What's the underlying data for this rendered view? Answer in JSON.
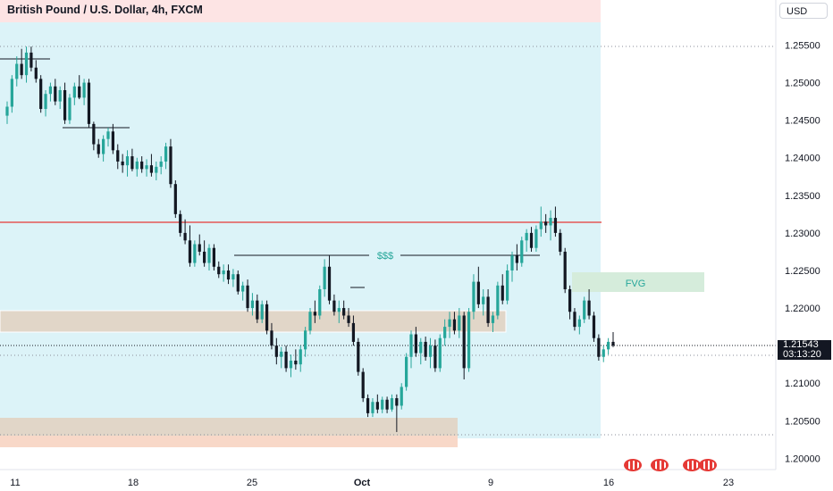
{
  "header": {
    "title": "British Pound / U.S. Dollar, 4h, FXCM",
    "currency": "USD"
  },
  "price_scale": {
    "ticks": [
      "1.25500",
      "1.25000",
      "1.24500",
      "1.24000",
      "1.23500",
      "1.23000",
      "1.22500",
      "1.22000",
      "1.21500",
      "1.21000",
      "1.20500",
      "1.20000"
    ],
    "current_price": "1.21543",
    "countdown": "03:13:20"
  },
  "time_axis": {
    "ticks": [
      "11",
      "18",
      "25",
      "Oct",
      "9",
      "16",
      "23"
    ]
  },
  "annotations": {
    "liquidity_label": "$$$",
    "fvg_label": "FVG"
  },
  "colors": {
    "up": "#26a69a",
    "down": "#131722",
    "zone_bg": "#dcf3f8",
    "top_zone": "#fde4e4",
    "supply_zone": "#e1d6c8",
    "demand_zone": "#f8d8c8",
    "resistance": "#e53935",
    "fvg": "#d5ecdb"
  },
  "chart_data": {
    "type": "candlestick",
    "title": "British Pound / U.S. Dollar, 4h, FXCM",
    "x_ticks": [
      "11",
      "18",
      "25",
      "Oct",
      "9",
      "16",
      "23"
    ],
    "y_range": [
      1.1985,
      1.261
    ],
    "y_ticks": [
      1.255,
      1.25,
      1.245,
      1.24,
      1.235,
      1.23,
      1.225,
      1.22,
      1.215,
      1.21,
      1.205,
      1.2
    ],
    "candles": [
      [
        1.2456,
        1.2475,
        1.2445,
        1.2468
      ],
      [
        1.2468,
        1.251,
        1.246,
        1.2505
      ],
      [
        1.2505,
        1.2535,
        1.2495,
        1.2525
      ],
      [
        1.2525,
        1.2545,
        1.2505,
        1.251
      ],
      [
        1.251,
        1.2548,
        1.25,
        1.254
      ],
      [
        1.254,
        1.2548,
        1.2515,
        1.252
      ],
      [
        1.252,
        1.253,
        1.25,
        1.2505
      ],
      [
        1.2505,
        1.251,
        1.246,
        1.2465
      ],
      [
        1.2465,
        1.249,
        1.2455,
        1.2485
      ],
      [
        1.2485,
        1.25,
        1.2475,
        1.2495
      ],
      [
        1.2495,
        1.2505,
        1.247,
        1.2475
      ],
      [
        1.2475,
        1.2495,
        1.2465,
        1.249
      ],
      [
        1.249,
        1.25,
        1.2445,
        1.245
      ],
      [
        1.245,
        1.2485,
        1.2445,
        1.248
      ],
      [
        1.248,
        1.25,
        1.247,
        1.2495
      ],
      [
        1.2495,
        1.251,
        1.2478,
        1.248
      ],
      [
        1.248,
        1.2505,
        1.247,
        1.25
      ],
      [
        1.25,
        1.2505,
        1.244,
        1.2445
      ],
      [
        1.2445,
        1.2448,
        1.241,
        1.2418
      ],
      [
        1.2418,
        1.2425,
        1.24,
        1.2405
      ],
      [
        1.2405,
        1.243,
        1.2395,
        1.2425
      ],
      [
        1.2425,
        1.244,
        1.2415,
        1.2435
      ],
      [
        1.2435,
        1.2445,
        1.2405,
        1.241
      ],
      [
        1.241,
        1.2418,
        1.2385,
        1.2395
      ],
      [
        1.2395,
        1.2405,
        1.238,
        1.239
      ],
      [
        1.239,
        1.241,
        1.2375,
        1.2402
      ],
      [
        1.2402,
        1.2412,
        1.2382,
        1.2385
      ],
      [
        1.2385,
        1.24,
        1.2375,
        1.2395
      ],
      [
        1.2395,
        1.2402,
        1.238,
        1.2385
      ],
      [
        1.2385,
        1.2398,
        1.2375,
        1.239
      ],
      [
        1.239,
        1.2405,
        1.2375,
        1.238
      ],
      [
        1.238,
        1.2395,
        1.237,
        1.2388
      ],
      [
        1.2388,
        1.2402,
        1.2378,
        1.2395
      ],
      [
        1.2395,
        1.242,
        1.2385,
        1.2415
      ],
      [
        1.2415,
        1.2425,
        1.236,
        1.2365
      ],
      [
        1.2365,
        1.237,
        1.232,
        1.2325
      ],
      [
        1.2325,
        1.233,
        1.2295,
        1.23
      ],
      [
        1.23,
        1.2318,
        1.2285,
        1.229
      ],
      [
        1.229,
        1.231,
        1.2255,
        1.226
      ],
      [
        1.226,
        1.229,
        1.2255,
        1.2285
      ],
      [
        1.2285,
        1.2298,
        1.227,
        1.2275
      ],
      [
        1.2275,
        1.229,
        1.2255,
        1.226
      ],
      [
        1.226,
        1.2285,
        1.225,
        1.228
      ],
      [
        1.228,
        1.2285,
        1.225,
        1.2255
      ],
      [
        1.2255,
        1.2262,
        1.224,
        1.2245
      ],
      [
        1.2245,
        1.2258,
        1.2235,
        1.225
      ],
      [
        1.225,
        1.2258,
        1.2232,
        1.2238
      ],
      [
        1.2238,
        1.2252,
        1.2228,
        1.2245
      ],
      [
        1.2245,
        1.225,
        1.2218,
        1.2222
      ],
      [
        1.2222,
        1.2235,
        1.221,
        1.223
      ],
      [
        1.223,
        1.2238,
        1.2195,
        1.22
      ],
      [
        1.22,
        1.222,
        1.219,
        1.221
      ],
      [
        1.221,
        1.2218,
        1.218,
        1.2185
      ],
      [
        1.2185,
        1.221,
        1.218,
        1.2205
      ],
      [
        1.2205,
        1.221,
        1.2165,
        1.217
      ],
      [
        1.217,
        1.218,
        1.2145,
        1.215
      ],
      [
        1.215,
        1.216,
        1.2125,
        1.2135
      ],
      [
        1.2135,
        1.2148,
        1.212,
        1.2142
      ],
      [
        1.2142,
        1.215,
        1.2115,
        1.212
      ],
      [
        1.212,
        1.2138,
        1.2108,
        1.213
      ],
      [
        1.213,
        1.2145,
        1.2118,
        1.2125
      ],
      [
        1.2125,
        1.215,
        1.2115,
        1.2145
      ],
      [
        1.2145,
        1.2175,
        1.2135,
        1.217
      ],
      [
        1.217,
        1.22,
        1.2165,
        1.2195
      ],
      [
        1.2195,
        1.221,
        1.218,
        1.219
      ],
      [
        1.219,
        1.223,
        1.2185,
        1.2225
      ],
      [
        1.2225,
        1.2265,
        1.2215,
        1.2255
      ],
      [
        1.2255,
        1.227,
        1.2205,
        1.221
      ],
      [
        1.221,
        1.2218,
        1.219,
        1.2195
      ],
      [
        1.2195,
        1.221,
        1.218,
        1.22
      ],
      [
        1.22,
        1.221,
        1.2185,
        1.219
      ],
      [
        1.219,
        1.22,
        1.2175,
        1.218
      ],
      [
        1.218,
        1.219,
        1.215,
        1.2155
      ],
      [
        1.2155,
        1.216,
        1.211,
        1.2115
      ],
      [
        1.2115,
        1.212,
        1.2075,
        1.208
      ],
      [
        1.208,
        1.2085,
        1.2055,
        1.206
      ],
      [
        1.206,
        1.208,
        1.2055,
        1.2075
      ],
      [
        1.2075,
        1.2085,
        1.206,
        1.2065
      ],
      [
        1.2065,
        1.2082,
        1.206,
        1.2078
      ],
      [
        1.2078,
        1.2082,
        1.206,
        1.2065
      ],
      [
        1.2065,
        1.2085,
        1.2062,
        1.208
      ],
      [
        1.208,
        1.2085,
        1.2035,
        1.207
      ],
      [
        1.207,
        1.21,
        1.2065,
        1.2095
      ],
      [
        1.2095,
        1.214,
        1.209,
        1.2135
      ],
      [
        1.2135,
        1.217,
        1.212,
        1.2165
      ],
      [
        1.2165,
        1.2175,
        1.2135,
        1.214
      ],
      [
        1.214,
        1.216,
        1.2125,
        1.2155
      ],
      [
        1.2155,
        1.2162,
        1.213,
        1.2135
      ],
      [
        1.2135,
        1.216,
        1.212,
        1.215
      ],
      [
        1.215,
        1.2158,
        1.2115,
        1.212
      ],
      [
        1.212,
        1.2165,
        1.2115,
        1.216
      ],
      [
        1.216,
        1.2185,
        1.215,
        1.2175
      ],
      [
        1.2175,
        1.2195,
        1.216,
        1.2185
      ],
      [
        1.2185,
        1.2195,
        1.2165,
        1.217
      ],
      [
        1.217,
        1.22,
        1.216,
        1.219
      ],
      [
        1.219,
        1.2195,
        1.2105,
        1.212
      ],
      [
        1.212,
        1.22,
        1.2115,
        1.2195
      ],
      [
        1.2195,
        1.2245,
        1.2185,
        1.2235
      ],
      [
        1.2235,
        1.2255,
        1.22,
        1.2205
      ],
      [
        1.2205,
        1.2225,
        1.219,
        1.2215
      ],
      [
        1.2215,
        1.2225,
        1.2175,
        1.218
      ],
      [
        1.218,
        1.2195,
        1.2168,
        1.219
      ],
      [
        1.219,
        1.2235,
        1.2185,
        1.223
      ],
      [
        1.223,
        1.2245,
        1.2205,
        1.221
      ],
      [
        1.221,
        1.2258,
        1.2205,
        1.225
      ],
      [
        1.225,
        1.2275,
        1.2235,
        1.227
      ],
      [
        1.227,
        1.2285,
        1.225,
        1.226
      ],
      [
        1.226,
        1.2295,
        1.2255,
        1.229
      ],
      [
        1.229,
        1.2305,
        1.2275,
        1.23
      ],
      [
        1.23,
        1.2308,
        1.2275,
        1.228
      ],
      [
        1.228,
        1.231,
        1.2275,
        1.2305
      ],
      [
        1.2305,
        1.2335,
        1.2295,
        1.2315
      ],
      [
        1.2315,
        1.2325,
        1.23,
        1.231
      ],
      [
        1.231,
        1.233,
        1.229,
        1.232
      ],
      [
        1.232,
        1.2335,
        1.2295,
        1.23
      ],
      [
        1.23,
        1.2305,
        1.227,
        1.2275
      ],
      [
        1.2275,
        1.228,
        1.222,
        1.2225
      ],
      [
        1.2225,
        1.223,
        1.2185,
        1.2195
      ],
      [
        1.2195,
        1.22,
        1.217,
        1.2175
      ],
      [
        1.2175,
        1.219,
        1.2165,
        1.2185
      ],
      [
        1.2185,
        1.2215,
        1.218,
        1.221
      ],
      [
        1.221,
        1.2225,
        1.2185,
        1.219
      ],
      [
        1.219,
        1.2195,
        1.2155,
        1.216
      ],
      [
        1.216,
        1.2165,
        1.213,
        1.2135
      ],
      [
        1.2135,
        1.215,
        1.2128,
        1.2145
      ],
      [
        1.2145,
        1.216,
        1.2138,
        1.2155
      ],
      [
        1.2155,
        1.2168,
        1.2148,
        1.215
      ]
    ]
  }
}
